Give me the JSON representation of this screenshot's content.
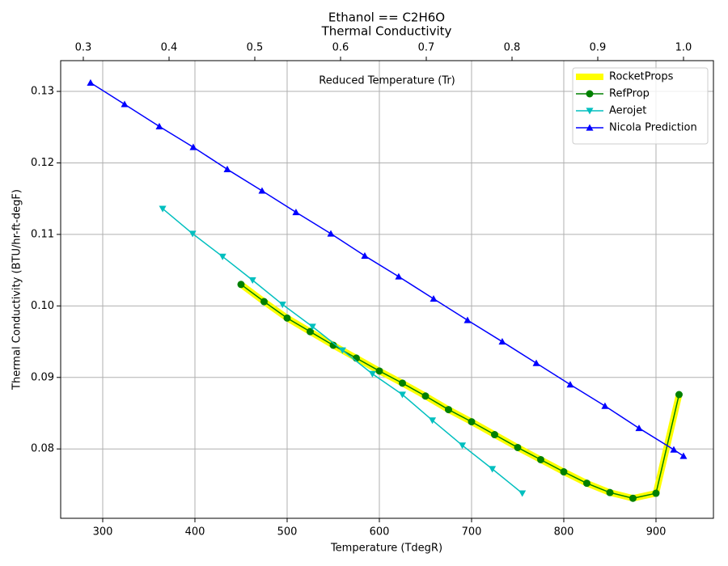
{
  "chart_data": {
    "type": "line",
    "title": "Ethanol == C2H6O",
    "subtitle": "Thermal Conductivity",
    "xlabel": "Temperature (TdegR)",
    "ylabel": "Thermal Conductivity (BTU/hr-ft-degF)",
    "x2label": "Reduced Temperature (Tr)",
    "xlim": [
      254.4,
      962.3
    ],
    "xticks": [
      300,
      400,
      500,
      600,
      700,
      800,
      900
    ],
    "ylim": [
      0.0703,
      0.1343
    ],
    "yticks": [
      0.08,
      0.09,
      {
        "value": 0.1,
        "label": "0.10"
      },
      0.11,
      0.12,
      0.13
    ],
    "x2lim": [
      0.2736,
      1.0349
    ],
    "x2ticks": [
      0.3,
      0.4,
      0.5,
      0.6,
      0.7,
      0.8,
      0.9,
      {
        "value": 1,
        "label": "1.0"
      }
    ],
    "grid": true,
    "legend": "upper right",
    "series": [
      {
        "name": "RocketProps",
        "color": "#ffff00",
        "marker": "none",
        "linewidth": 8,
        "x": [
          450,
          475,
          500,
          525,
          550,
          575,
          600,
          625,
          650,
          675,
          700,
          725,
          750,
          775,
          800,
          825,
          850,
          875,
          900,
          925
        ],
        "values": [
          0.103,
          0.1006,
          0.0983,
          0.0964,
          0.0945,
          0.0927,
          0.0909,
          0.0892,
          0.0874,
          0.0855,
          0.0838,
          0.082,
          0.0802,
          0.0785,
          0.0768,
          0.0752,
          0.0739,
          0.0731,
          0.0738,
          0.0876
        ]
      },
      {
        "name": "RefProp",
        "color": "#008000",
        "marker": "circle",
        "linewidth": 1.5,
        "x": [
          450,
          475,
          500,
          525,
          550,
          575,
          600,
          625,
          650,
          675,
          700,
          725,
          750,
          775,
          800,
          825,
          850,
          875,
          900,
          925
        ],
        "values": [
          0.103,
          0.1006,
          0.0983,
          0.0964,
          0.0945,
          0.0927,
          0.0909,
          0.0892,
          0.0874,
          0.0855,
          0.0838,
          0.082,
          0.0802,
          0.0785,
          0.0768,
          0.0752,
          0.0739,
          0.0731,
          0.0738,
          0.0876
        ]
      },
      {
        "name": "Aerojet",
        "color": "#00bfbf",
        "marker": "triangle-down",
        "linewidth": 1.5,
        "x": [
          365,
          397.5,
          430,
          462.5,
          495,
          527.5,
          560,
          592.5,
          625,
          657.5,
          690,
          722.5,
          755
        ],
        "values": [
          0.1136,
          0.1101,
          0.1069,
          0.1036,
          0.1002,
          0.0971,
          0.0938,
          0.0905,
          0.0876,
          0.084,
          0.0805,
          0.0772,
          0.0738
        ]
      },
      {
        "name": "Nicola Prediction",
        "color": "#0000ff",
        "marker": "triangle-up",
        "linewidth": 1.5,
        "x": [
          286.8,
          323.7,
          361.4,
          398.2,
          435.1,
          472.8,
          509.6,
          547.4,
          584.2,
          621,
          658.8,
          695.6,
          733.3,
          770.2,
          807,
          844.7,
          881.6,
          919.3,
          929.8
        ],
        "values": [
          0.1312,
          0.1282,
          0.1251,
          0.1222,
          0.1191,
          0.1161,
          0.1131,
          0.1101,
          0.107,
          0.1041,
          0.101,
          0.098,
          0.095,
          0.092,
          0.089,
          0.086,
          0.0829,
          0.0799,
          0.079
        ]
      }
    ]
  }
}
